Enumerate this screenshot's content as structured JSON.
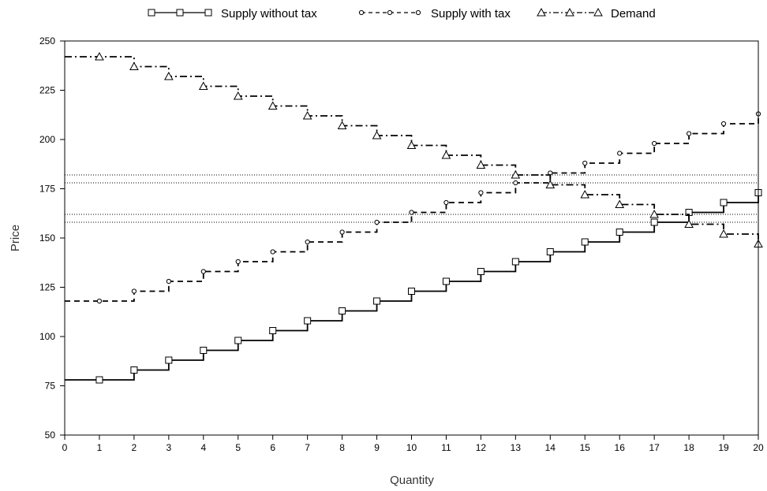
{
  "chart_data": {
    "type": "line",
    "step": true,
    "title": "",
    "xlabel": "Quantity",
    "ylabel": "Price",
    "xlim": [
      0,
      20
    ],
    "ylim": [
      50,
      250
    ],
    "xticks": [
      0,
      1,
      2,
      3,
      4,
      5,
      6,
      7,
      8,
      9,
      10,
      11,
      12,
      13,
      14,
      15,
      16,
      17,
      18,
      19,
      20
    ],
    "yticks": [
      50,
      75,
      100,
      125,
      150,
      175,
      200,
      225,
      250
    ],
    "grid": false,
    "legend_position": "top",
    "series": [
      {
        "name": "Supply without tax",
        "marker": "square",
        "line_style": "solid",
        "x": [
          1,
          2,
          3,
          4,
          5,
          6,
          7,
          8,
          9,
          10,
          11,
          12,
          13,
          14,
          15,
          16,
          17,
          18,
          19,
          20
        ],
        "values": [
          78,
          83,
          88,
          93,
          98,
          103,
          108,
          113,
          118,
          123,
          128,
          133,
          138,
          143,
          148,
          153,
          158,
          163,
          168,
          173
        ]
      },
      {
        "name": "Supply with tax",
        "marker": "circle",
        "line_style": "dashed",
        "x": [
          1,
          2,
          3,
          4,
          5,
          6,
          7,
          8,
          9,
          10,
          11,
          12,
          13,
          14,
          15,
          16,
          17,
          18,
          19,
          20
        ],
        "values": [
          118,
          123,
          128,
          133,
          138,
          143,
          148,
          153,
          158,
          163,
          168,
          173,
          178,
          183,
          188,
          193,
          198,
          203,
          208,
          213
        ]
      },
      {
        "name": "Demand",
        "marker": "triangle",
        "line_style": "dashdot",
        "x": [
          1,
          2,
          3,
          4,
          5,
          6,
          7,
          8,
          9,
          10,
          11,
          12,
          13,
          14,
          15,
          16,
          17,
          18,
          19,
          20
        ],
        "values": [
          242,
          237,
          232,
          227,
          222,
          217,
          212,
          207,
          202,
          197,
          192,
          187,
          182,
          177,
          172,
          167,
          162,
          157,
          152,
          147
        ]
      }
    ],
    "reference_lines_y": [
      182,
      178,
      162,
      158
    ]
  }
}
